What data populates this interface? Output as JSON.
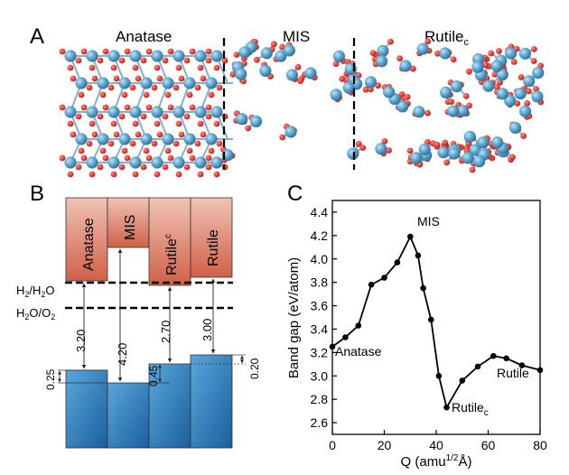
{
  "panel_a": {
    "letter": "A",
    "labels": {
      "anatase": "Anatase",
      "mis": "MIS",
      "rutile_main": "Rutile",
      "rutile_sub": "c"
    }
  },
  "panel_b": {
    "letter": "B",
    "cb_labels": {
      "anatase": "Anatase",
      "mis": "MIS",
      "rutile_c_main": "Rutile",
      "rutile_c_sub": "c",
      "rutile": "Rutile"
    },
    "redox": {
      "h2": {
        "p1": "H",
        "s1": "2",
        "p2": "/H",
        "s2": "2",
        "p3": "O"
      },
      "o2": {
        "p1": "H",
        "s1": "2",
        "p2": "O/O",
        "s2": "2"
      }
    },
    "gaps": [
      "3.20",
      "4.20",
      "2.70",
      "3.00"
    ],
    "offsets": [
      "0.25",
      "0.45",
      "0.20"
    ],
    "colors": {
      "cb_top": "#f1c3b4",
      "cb_bottom": "#cf6048",
      "vb_top": "#5aa7dc",
      "vb_bottom": "#1a5f9d"
    }
  },
  "panel_c": {
    "letter": "C",
    "annotations": {
      "mis": "MIS",
      "anatase": "Anatase",
      "rutile": "Rutile",
      "rutile_c_main": "Rutile",
      "rutile_c_sub": "c"
    }
  },
  "chart_data": {
    "type": "line",
    "x": [
      0,
      5,
      10,
      15,
      20,
      25,
      30,
      33,
      35,
      38,
      41,
      44,
      50,
      56,
      62,
      67,
      73,
      80
    ],
    "y": [
      3.25,
      3.33,
      3.43,
      3.78,
      3.84,
      3.97,
      4.19,
      4.03,
      3.75,
      3.48,
      3.0,
      2.73,
      2.96,
      3.08,
      3.17,
      3.15,
      3.09,
      3.05
    ],
    "xlabel_main": "Q (amu",
    "xlabel_sup": "1/2",
    "xlabel_end": "Å)",
    "ylabel": "Band gap (eV/atom)",
    "xlim": [
      0,
      80
    ],
    "ylim": [
      2.5,
      4.5
    ],
    "x_ticks": [
      "0",
      "20",
      "40",
      "60",
      "80"
    ],
    "y_ticks": [
      "2.6",
      "2.8",
      "3.0",
      "3.2",
      "3.4",
      "3.6",
      "3.8",
      "4.0",
      "4.2",
      "4.4"
    ],
    "grid": false
  }
}
